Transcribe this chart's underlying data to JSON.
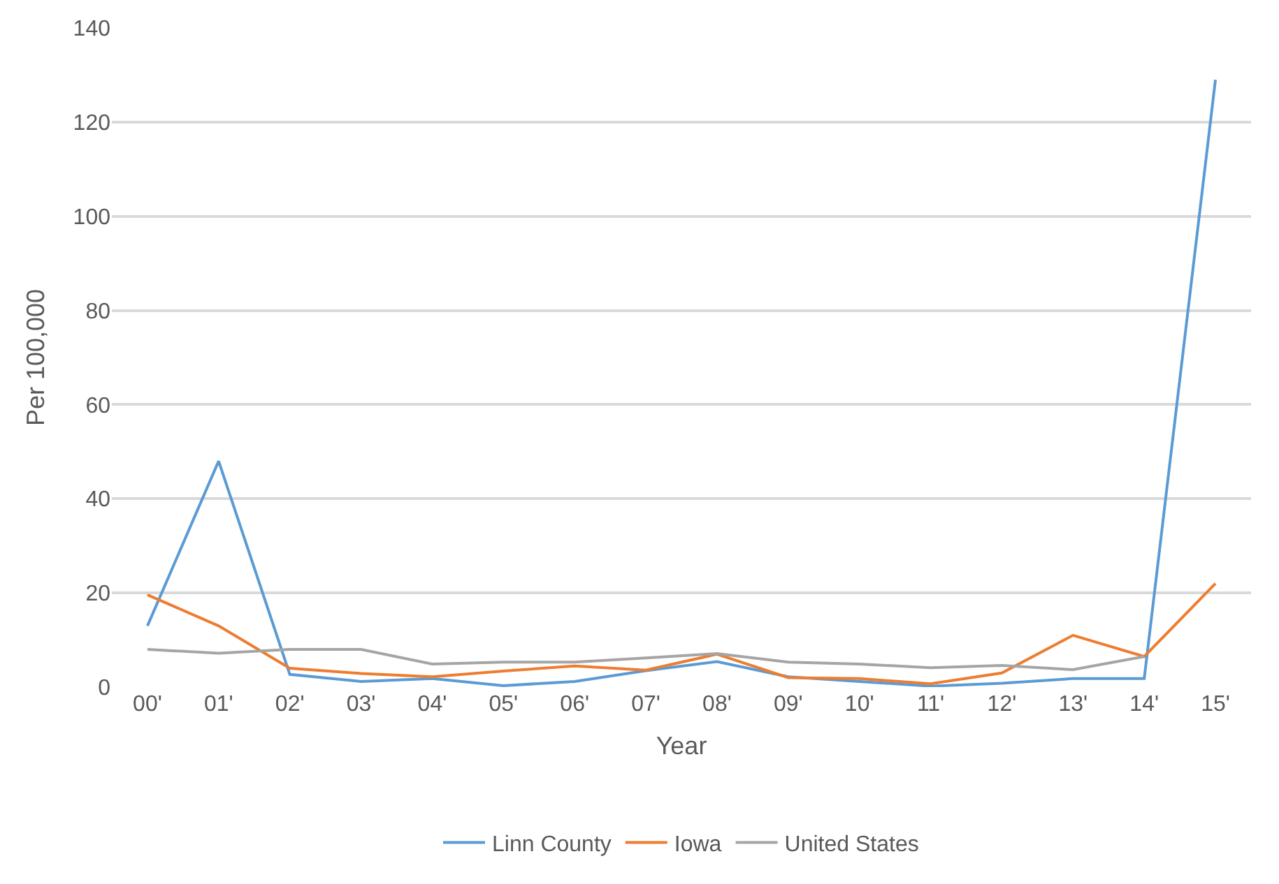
{
  "chart_data": {
    "type": "line",
    "xlabel": "Year",
    "ylabel": "Per 100,000",
    "categories": [
      "00'",
      "01'",
      "02'",
      "03'",
      "04'",
      "05'",
      "06'",
      "07'",
      "08'",
      "09'",
      "10'",
      "11'",
      "12'",
      "13'",
      "14'",
      "15'"
    ],
    "series": [
      {
        "name": "Linn County",
        "color": "#5b9bd5",
        "values": [
          13,
          48,
          2.7,
          1.2,
          1.8,
          0.3,
          1.2,
          3.5,
          5.4,
          2.2,
          1.2,
          0.2,
          0.8,
          1.8,
          1.8,
          129
        ]
      },
      {
        "name": "Iowa",
        "color": "#ed7d31",
        "values": [
          19.6,
          13,
          4,
          2.9,
          2.2,
          3.4,
          4.5,
          3.6,
          7,
          2,
          1.8,
          0.7,
          3,
          11,
          6.5,
          22
        ]
      },
      {
        "name": "United States",
        "color": "#a5a5a5",
        "values": [
          8,
          7.2,
          8,
          8,
          4.9,
          5.3,
          5.3,
          6.2,
          7.1,
          5.3,
          4.9,
          4.1,
          4.6,
          3.7,
          6.5,
          null
        ]
      }
    ],
    "ylim": [
      0,
      140
    ],
    "yticks": [
      0,
      20,
      40,
      60,
      80,
      100,
      120,
      140
    ],
    "grid": "y",
    "legend": "bottom",
    "marker": "none",
    "line_style": "solid"
  }
}
